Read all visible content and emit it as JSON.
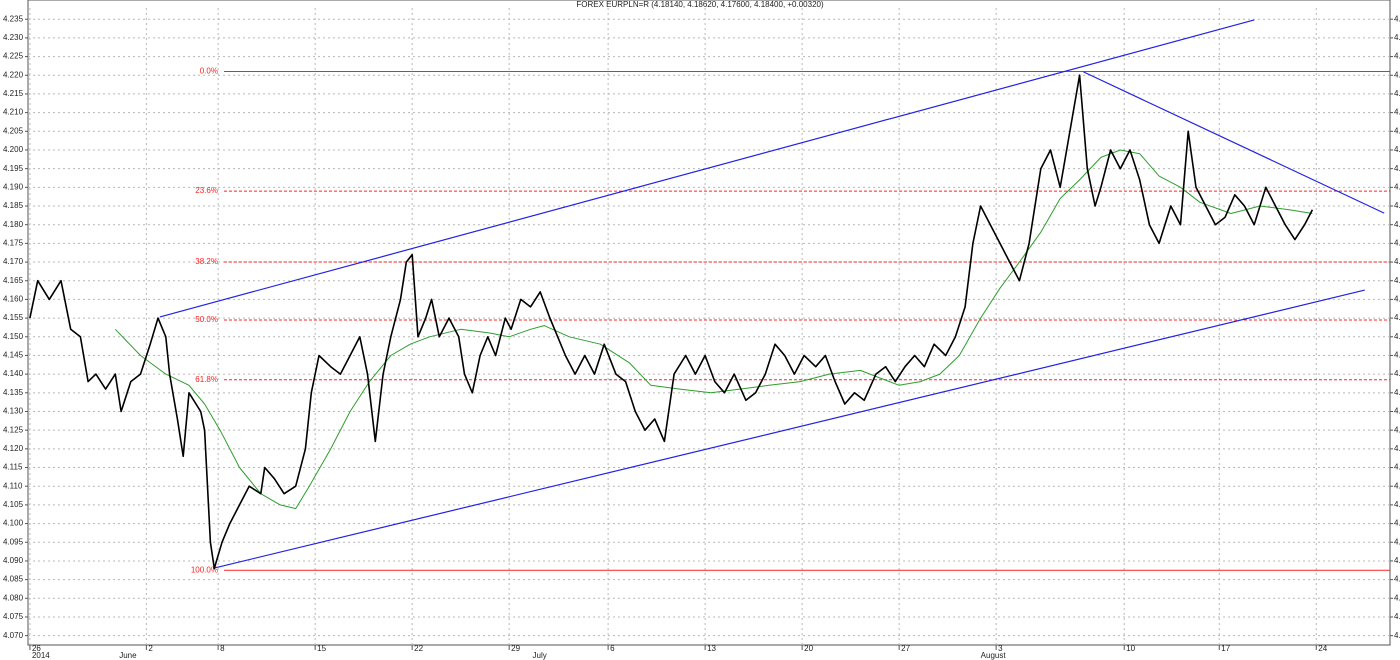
{
  "chart_data": {
    "type": "line",
    "title": "FOREX EURPLN=R (4.18140, 4.18620, 4.17600, 4.18400, +0.00320)",
    "xlim": [
      -0.1,
      70.1
    ],
    "ylim": [
      4.0675,
      4.238
    ],
    "grid": true,
    "xticks": [
      {
        "value": 0,
        "label": "26"
      },
      {
        "value": 6.0,
        "label": "2"
      },
      {
        "value": 9.7,
        "label": "8"
      },
      {
        "value": 14.7,
        "label": "15"
      },
      {
        "value": 19.7,
        "label": "22"
      },
      {
        "value": 24.7,
        "label": "29"
      },
      {
        "value": 29.8,
        "label": "6"
      },
      {
        "value": 34.8,
        "label": "13"
      },
      {
        "value": 39.8,
        "label": "20"
      },
      {
        "value": 44.8,
        "label": "27"
      },
      {
        "value": 49.8,
        "label": "3"
      },
      {
        "value": 56.4,
        "label": "10"
      },
      {
        "value": 61.3,
        "label": "17"
      },
      {
        "value": 66.3,
        "label": "24"
      }
    ],
    "period_labels": [
      {
        "value": 0,
        "label": "2014"
      },
      {
        "value": 4.5,
        "label": "June"
      },
      {
        "value": 25.8,
        "label": "July"
      },
      {
        "value": 48.9,
        "label": "August"
      }
    ],
    "yticks": [
      {
        "value": 4.07,
        "label": "4.070"
      },
      4.075,
      {
        "value": 4.08,
        "label": "4.080"
      },
      4.085,
      {
        "value": 4.09,
        "label": "4.090"
      },
      4.095,
      {
        "value": 4.1,
        "label": "4.100"
      },
      4.105,
      {
        "value": 4.11,
        "label": "4.110"
      },
      4.115,
      {
        "value": 4.12,
        "label": "4.120"
      },
      4.125,
      {
        "value": 4.13,
        "label": "4.130"
      },
      4.135,
      {
        "value": 4.14,
        "label": "4.140"
      },
      4.145,
      {
        "value": 4.15,
        "label": "4.150"
      },
      4.155,
      {
        "value": 4.16,
        "label": "4.160"
      },
      4.165,
      {
        "value": 4.17,
        "label": "4.170"
      },
      4.175,
      {
        "value": 4.18,
        "label": "4.180"
      },
      4.185,
      {
        "value": 4.19,
        "label": "4.190"
      },
      4.195,
      {
        "value": 4.2,
        "label": "4.200"
      },
      4.205,
      {
        "value": 4.21,
        "label": "4.210"
      },
      4.215,
      {
        "value": 4.22,
        "label": "4.220"
      },
      4.225,
      {
        "value": 4.23,
        "label": "4.230"
      },
      4.235
    ],
    "series": [
      {
        "color": "#000000",
        "x": [
          0,
          0.4,
          1.0,
          1.6,
          2.1,
          2.6,
          3.0,
          3.4,
          3.9,
          4.4,
          4.7,
          5.2,
          5.7,
          6.2,
          6.6,
          7.0,
          7.2,
          7.6,
          7.9,
          8.2,
          8.8,
          9.0,
          9.3,
          9.5,
          9.9,
          10.3,
          10.8,
          11.3,
          11.9,
          12.1,
          12.6,
          13.1,
          13.7,
          14.2,
          14.5,
          14.9,
          15.5,
          16.0,
          16.5,
          17.0,
          17.4,
          17.8,
          18.2,
          18.6,
          19.1,
          19.4,
          19.7,
          20.0,
          20.4,
          20.7,
          21.1,
          21.6,
          22.1,
          22.4,
          22.8,
          23.2,
          23.6,
          24.0,
          24.5,
          24.8,
          25.3,
          25.8,
          26.3,
          26.8,
          27.2,
          27.6,
          28.1,
          28.6,
          29.1,
          29.6,
          30.2,
          30.7,
          31.2,
          31.7,
          32.2,
          32.7,
          33.2,
          33.8,
          34.3,
          34.8,
          35.3,
          35.8,
          36.3,
          36.9,
          37.4,
          37.9,
          38.4,
          38.9,
          39.4,
          39.9,
          40.5,
          41.0,
          41.5,
          42.0,
          42.5,
          43.0,
          43.6,
          44.1,
          44.6,
          45.1,
          45.6,
          46.1,
          46.6,
          47.2,
          47.7,
          48.2,
          48.6,
          49.0,
          49.5,
          50.0,
          50.5,
          51.0,
          51.5,
          52.1,
          52.6,
          53.1,
          53.6,
          54.1,
          54.5,
          54.9,
          55.2,
          55.7,
          56.2,
          56.7,
          57.2,
          57.7,
          58.2,
          58.8,
          59.3,
          59.7,
          60.1,
          60.6,
          61.1,
          61.6,
          62.1,
          62.6,
          63.1,
          63.7,
          64.2,
          64.7,
          65.2,
          65.7,
          66.1
        ],
        "values": [
          4.155,
          4.165,
          4.16,
          4.165,
          4.152,
          4.15,
          4.138,
          4.14,
          4.136,
          4.14,
          4.13,
          4.138,
          4.14,
          4.148,
          4.155,
          4.15,
          4.14,
          4.128,
          4.118,
          4.135,
          4.13,
          4.125,
          4.095,
          4.088,
          4.095,
          4.1,
          4.105,
          4.11,
          4.108,
          4.115,
          4.112,
          4.108,
          4.11,
          4.12,
          4.135,
          4.145,
          4.142,
          4.14,
          4.145,
          4.15,
          4.14,
          4.122,
          4.14,
          4.15,
          4.16,
          4.17,
          4.172,
          4.15,
          4.155,
          4.16,
          4.15,
          4.155,
          4.15,
          4.14,
          4.135,
          4.145,
          4.15,
          4.145,
          4.155,
          4.152,
          4.16,
          4.158,
          4.162,
          4.155,
          4.15,
          4.145,
          4.14,
          4.145,
          4.14,
          4.148,
          4.14,
          4.138,
          4.13,
          4.125,
          4.128,
          4.122,
          4.14,
          4.145,
          4.14,
          4.145,
          4.138,
          4.135,
          4.14,
          4.133,
          4.135,
          4.14,
          4.148,
          4.145,
          4.14,
          4.145,
          4.142,
          4.145,
          4.138,
          4.132,
          4.135,
          4.133,
          4.14,
          4.142,
          4.138,
          4.142,
          4.145,
          4.142,
          4.148,
          4.145,
          4.15,
          4.158,
          4.175,
          4.185,
          4.18,
          4.175,
          4.17,
          4.165,
          4.175,
          4.195,
          4.2,
          4.19,
          4.205,
          4.22,
          4.195,
          4.185,
          4.19,
          4.2,
          4.195,
          4.2,
          4.192,
          4.18,
          4.175,
          4.185,
          4.18,
          4.205,
          4.19,
          4.185,
          4.18,
          4.182,
          4.188,
          4.185,
          4.18,
          4.19,
          4.185,
          4.18,
          4.176,
          4.18,
          4.184
        ]
      },
      {
        "color": "#2e9e2e",
        "x": [
          4.4,
          5.7,
          7.0,
          8.2,
          9.0,
          9.8,
          10.8,
          11.9,
          12.9,
          13.7,
          14.4,
          15.5,
          16.5,
          17.5,
          18.6,
          19.6,
          20.6,
          22.2,
          23.7,
          24.7,
          25.8,
          26.5,
          27.8,
          29.4,
          30.9,
          32.0,
          33.5,
          35.1,
          36.6,
          38.1,
          39.7,
          41.2,
          42.8,
          43.8,
          44.8,
          45.9,
          46.9,
          47.9,
          49.0,
          50.0,
          51.0,
          52.1,
          53.1,
          54.1,
          55.2,
          56.2,
          57.2,
          58.2,
          59.3,
          60.3,
          61.9,
          63.4,
          64.9,
          66.1
        ],
        "values": [
          4.152,
          4.145,
          4.14,
          4.137,
          4.132,
          4.125,
          4.115,
          4.108,
          4.105,
          4.104,
          4.11,
          4.12,
          4.13,
          4.138,
          4.145,
          4.148,
          4.15,
          4.152,
          4.151,
          4.15,
          4.152,
          4.153,
          4.15,
          4.148,
          4.143,
          4.137,
          4.136,
          4.135,
          4.136,
          4.137,
          4.138,
          4.14,
          4.141,
          4.139,
          4.137,
          4.138,
          4.14,
          4.145,
          4.155,
          4.163,
          4.17,
          4.178,
          4.187,
          4.192,
          4.198,
          4.2,
          4.199,
          4.193,
          4.19,
          4.186,
          4.183,
          4.185,
          4.184,
          4.183
        ]
      }
    ],
    "trendlines": [
      {
        "color": "#2323e0",
        "x": [
          6.7,
          63.1
        ],
        "values": [
          4.1553,
          4.2348
        ]
      },
      {
        "color": "#2323e0",
        "x": [
          9.5,
          68.8
        ],
        "values": [
          4.0881,
          4.1625
        ]
      },
      {
        "color": "#2323e0",
        "x": [
          54.3,
          69.8
        ],
        "values": [
          4.2209,
          4.1831
        ]
      }
    ],
    "fib_color": "#ff2020",
    "fib_start": 10.0,
    "fib_levels": [
      {
        "label": "0.0%",
        "value": 4.221,
        "style": "solid"
      },
      {
        "label": "23.6%",
        "value": 4.189,
        "style": "dashed"
      },
      {
        "label": "38.2%",
        "value": 4.17,
        "style": "dashed"
      },
      {
        "label": "50.0%",
        "value": 4.1545,
        "style": "dashed"
      },
      {
        "label": "61.8%",
        "value": 4.1385,
        "style": "dashed"
      },
      {
        "label": "100.0%",
        "value": 4.0875,
        "style": "solid"
      }
    ]
  }
}
